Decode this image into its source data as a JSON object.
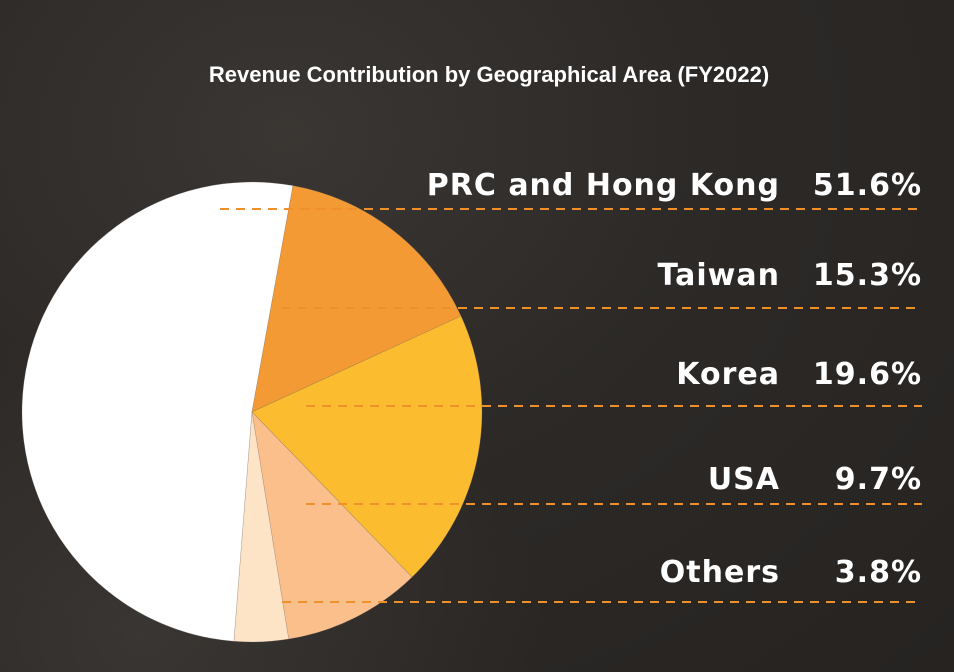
{
  "colors": {
    "background": "#2c2927",
    "text": "#ffffff",
    "leader_line": "#f0902a"
  },
  "chart_data": {
    "type": "pie",
    "title": "Revenue Contribution by Geographical Area (FY2022)",
    "slices": [
      {
        "label": "PRC and Hong Kong",
        "value": 51.6,
        "value_label": "51.6%",
        "color": "#ffffff"
      },
      {
        "label": "Taiwan",
        "value": 15.3,
        "value_label": "15.3%",
        "color": "#f49a34"
      },
      {
        "label": "Korea",
        "value": 19.6,
        "value_label": "19.6%",
        "color": "#fbbc30"
      },
      {
        "label": "USA",
        "value": 9.7,
        "value_label": "9.7%",
        "color": "#fbbf8c"
      },
      {
        "label": "Others",
        "value": 3.8,
        "value_label": "3.8%",
        "color": "#fde4c6"
      }
    ],
    "legend_position": "right"
  }
}
